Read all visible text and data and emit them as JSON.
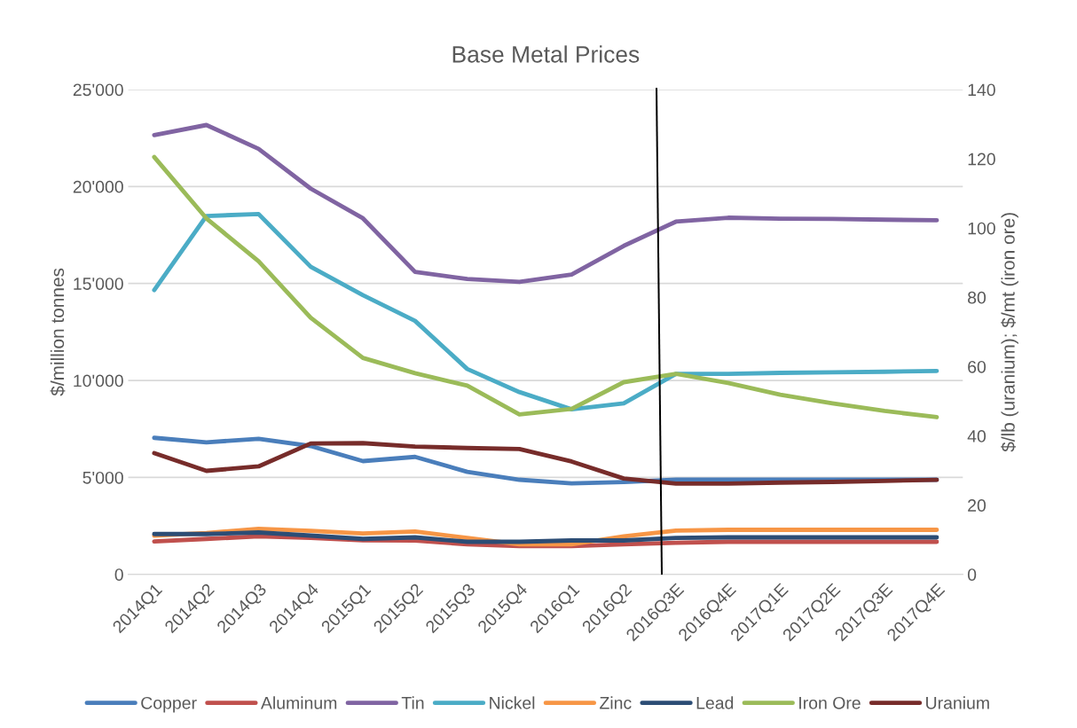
{
  "chart_data": {
    "type": "line",
    "title": "Base Metal Prices",
    "ylabel": "$/million tonnes",
    "y2label": "$/lb (uranium); $/mt (iron ore)",
    "categories": [
      "2014Q1",
      "2014Q2",
      "2014Q3",
      "2014Q4",
      "2015Q1",
      "2015Q2",
      "2015Q3",
      "2015Q4",
      "2016Q1",
      "2016Q2",
      "2016Q3E",
      "2016Q4E",
      "2017Q1E",
      "2017Q2E",
      "2017Q3E",
      "2017Q4E"
    ],
    "series": [
      {
        "name": "Copper",
        "color": "#4a7ebb",
        "values": [
          7040,
          6810,
          6990,
          6620,
          5840,
          6060,
          5290,
          4880,
          4690,
          4760,
          4880,
          4880,
          4880,
          4880,
          4880,
          4880
        ]
      },
      {
        "name": "Aluminum",
        "color": "#c0504d",
        "values": [
          1700,
          1830,
          1960,
          1880,
          1760,
          1750,
          1550,
          1460,
          1460,
          1550,
          1630,
          1680,
          1680,
          1680,
          1680,
          1680
        ]
      },
      {
        "name": "Tin",
        "color": "#8064a2",
        "values": [
          22650,
          23170,
          21940,
          19890,
          18360,
          15600,
          15230,
          15080,
          15460,
          16940,
          18190,
          18390,
          18340,
          18330,
          18290,
          18260
        ]
      },
      {
        "name": "Nickel",
        "color": "#4bacc6",
        "values": [
          14660,
          18480,
          18580,
          15860,
          14400,
          13070,
          10590,
          9400,
          8510,
          8820,
          10340,
          10340,
          10390,
          10420,
          10450,
          10490
        ]
      },
      {
        "name": "Zinc",
        "color": "#f79646",
        "values": [
          2000,
          2130,
          2350,
          2250,
          2110,
          2210,
          1880,
          1550,
          1550,
          1960,
          2260,
          2300,
          2300,
          2300,
          2300,
          2300
        ]
      },
      {
        "name": "Lead",
        "color": "#2c4d75",
        "values": [
          2080,
          2080,
          2160,
          2000,
          1830,
          1910,
          1680,
          1680,
          1750,
          1750,
          1880,
          1910,
          1910,
          1910,
          1910,
          1910
        ]
      },
      {
        "name": "Iron Ore",
        "color": "#9bbb59",
        "axis": "y2",
        "values": [
          120.5,
          102.8,
          90.4,
          74.1,
          62.5,
          58.1,
          54.5,
          46.2,
          47.8,
          55.5,
          57.9,
          55.3,
          51.9,
          49.4,
          47.2,
          45.4
        ]
      },
      {
        "name": "Uranium",
        "color": "#772c2a",
        "axis": "y2",
        "values": [
          35.0,
          29.9,
          31.2,
          37.8,
          37.9,
          36.9,
          36.5,
          36.2,
          32.6,
          27.7,
          26.2,
          26.2,
          26.5,
          26.7,
          27.0,
          27.3
        ]
      }
    ],
    "ylim": [
      0,
      25000
    ],
    "yticks": [
      0,
      {
        "value": 5000,
        "label": "5'000"
      },
      {
        "value": 10000,
        "label": "10'000"
      },
      {
        "value": 15000,
        "label": "15'000"
      },
      {
        "value": 20000,
        "label": "20'000"
      },
      {
        "value": 25000,
        "label": "25'000"
      }
    ],
    "y2lim": [
      0,
      140
    ],
    "y2ticks": [
      0,
      20,
      40,
      60,
      80,
      100,
      120,
      140
    ],
    "grid": "y",
    "legend": "bottom",
    "marker": "none",
    "line_style": "solid"
  }
}
